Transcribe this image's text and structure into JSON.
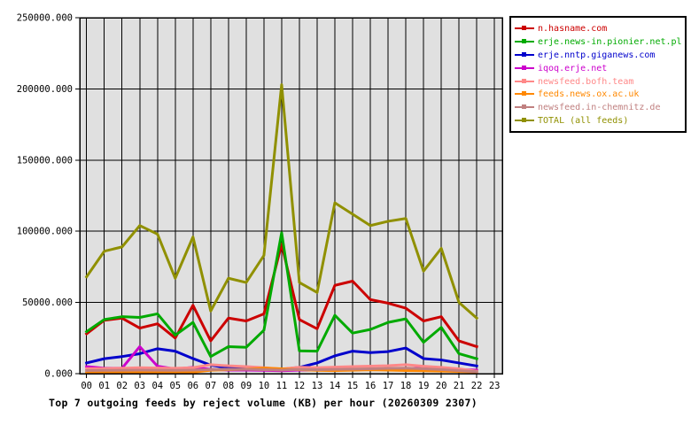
{
  "chart_data": {
    "type": "line",
    "title": "Top 7 outgoing feeds by reject volume (KB) per hour (20260309 2307)",
    "xlabel": "",
    "ylabel": "",
    "ylim": [
      0,
      250000
    ],
    "grid": true,
    "plot_bg": "#e0e0e0",
    "grid_color": "#000000",
    "legend_position": "outside-top-right",
    "categories": [
      "00",
      "01",
      "02",
      "03",
      "04",
      "05",
      "06",
      "07",
      "08",
      "09",
      "10",
      "11",
      "12",
      "13",
      "14",
      "15",
      "16",
      "17",
      "18",
      "19",
      "20",
      "21",
      "22",
      "23"
    ],
    "y_ticks": [
      0,
      50000,
      100000,
      150000,
      200000,
      250000
    ],
    "y_tick_labels": [
      "0.000",
      "50000.000",
      "100000.000",
      "150000.000",
      "200000.000",
      "250000.000"
    ],
    "note_hours_with_data": "00-22",
    "series": [
      {
        "name": "n.hasname.com",
        "color": "#cc0000",
        "values": [
          28000,
          37500,
          39000,
          32000,
          35000,
          25000,
          48000,
          23000,
          39000,
          37000,
          42000,
          91000,
          38000,
          31500,
          62000,
          65000,
          52000,
          49500,
          46000,
          37000,
          40000,
          23000,
          19000
        ]
      },
      {
        "name": "erje.news-in.pionier.net.pl",
        "color": "#00aa00",
        "values": [
          29500,
          38000,
          40000,
          39500,
          42000,
          27000,
          36000,
          12000,
          19000,
          18500,
          30500,
          99000,
          16000,
          15800,
          41000,
          28500,
          31000,
          36000,
          38500,
          22000,
          32500,
          14000,
          10500
        ]
      },
      {
        "name": "erje.nntp.giganews.com",
        "color": "#0000cc",
        "values": [
          7500,
          10500,
          12000,
          14000,
          17500,
          15800,
          10600,
          6000,
          4000,
          3500,
          3200,
          3000,
          4400,
          7500,
          12500,
          15800,
          14800,
          15500,
          18000,
          10600,
          9600,
          7500,
          5400
        ]
      },
      {
        "name": "iqoq.erje.net",
        "color": "#cc00cc",
        "values": [
          5000,
          3800,
          3800,
          19000,
          5200,
          3300,
          4400,
          3000,
          2500,
          2500,
          2300,
          2000,
          2500,
          2500,
          2600,
          2800,
          3000,
          3200,
          3000,
          4500,
          4200,
          2800,
          2500
        ]
      },
      {
        "name": "newsfeed.bofh.team",
        "color": "#ff8888",
        "values": [
          3500,
          3600,
          3800,
          4200,
          4000,
          3800,
          4200,
          6300,
          5500,
          5000,
          4200,
          3300,
          4500,
          4200,
          4600,
          5000,
          5300,
          5600,
          6300,
          5200,
          4400,
          3400,
          1700
        ]
      },
      {
        "name": "feeds.news.ox.ac.uk",
        "color": "#ff8800",
        "values": [
          700,
          750,
          800,
          900,
          850,
          800,
          1000,
          2400,
          2800,
          3100,
          3900,
          3400,
          2800,
          2300,
          2100,
          2400,
          2700,
          2500,
          2200,
          2000,
          1800,
          1500,
          1200
        ]
      },
      {
        "name": "newsfeed.in-chemnitz.de",
        "color": "#c08080",
        "values": [
          2200,
          2300,
          2400,
          2500,
          2400,
          2300,
          2500,
          2900,
          3100,
          3000,
          2800,
          2500,
          3000,
          2800,
          3000,
          3200,
          3400,
          3700,
          3900,
          3400,
          2900,
          2100,
          1400
        ]
      },
      {
        "name": "TOTAL (all feeds)",
        "color": "#909000",
        "values": [
          68000,
          86000,
          89000,
          104000,
          98000,
          67000,
          96000,
          44000,
          67000,
          64000,
          83000,
          203000,
          64000,
          57000,
          120000,
          112000,
          104000,
          107000,
          109000,
          72000,
          88000,
          50000,
          39000
        ]
      }
    ]
  }
}
